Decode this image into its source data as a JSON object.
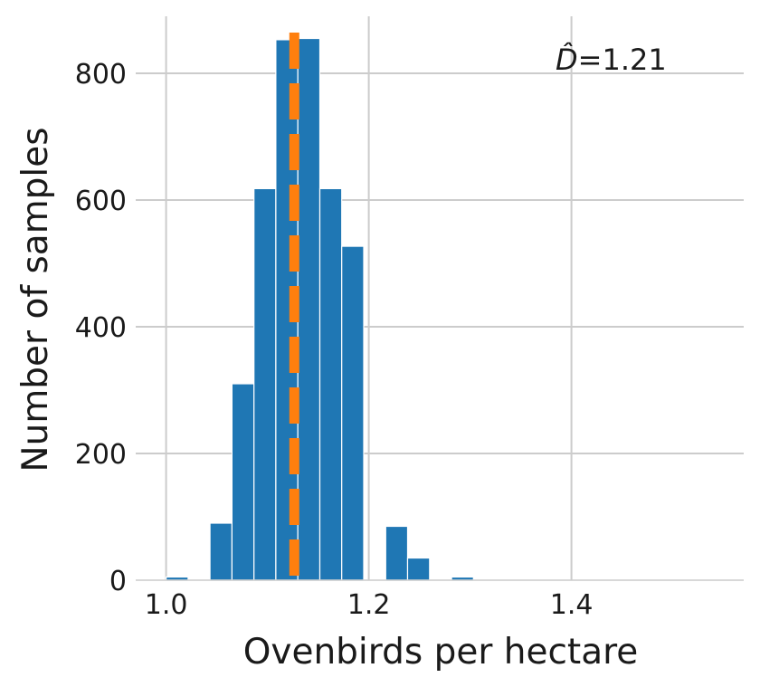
{
  "chart_data": {
    "type": "bar",
    "subtype": "histogram",
    "xlabel": "Ovenbirds per hectare",
    "ylabel": "Number of samples",
    "xlim": [
      0.97,
      1.57
    ],
    "ylim": [
      0,
      890
    ],
    "xticks": [
      1.0,
      1.2,
      1.4
    ],
    "xtick_labels": [
      "1.0",
      "1.2",
      "1.4"
    ],
    "yticks": [
      0,
      200,
      400,
      600,
      800
    ],
    "ytick_labels": [
      "0",
      "200",
      "400",
      "600",
      "800"
    ],
    "grid": true,
    "bins": [
      {
        "start": 1.0,
        "end": 1.0217,
        "count": 5
      },
      {
        "start": 1.0217,
        "end": 1.0433,
        "count": 0
      },
      {
        "start": 1.0433,
        "end": 1.065,
        "count": 90
      },
      {
        "start": 1.065,
        "end": 1.0867,
        "count": 310
      },
      {
        "start": 1.0867,
        "end": 1.1083,
        "count": 618
      },
      {
        "start": 1.1083,
        "end": 1.13,
        "count": 853
      },
      {
        "start": 1.13,
        "end": 1.1517,
        "count": 855
      },
      {
        "start": 1.1517,
        "end": 1.1733,
        "count": 618
      },
      {
        "start": 1.1733,
        "end": 1.195,
        "count": 527
      },
      {
        "start": 1.195,
        "end": 1.2167,
        "count": 0
      },
      {
        "start": 1.2167,
        "end": 1.2383,
        "count": 85
      },
      {
        "start": 1.2383,
        "end": 1.26,
        "count": 35
      },
      {
        "start": 1.26,
        "end": 1.2817,
        "count": 0
      },
      {
        "start": 1.2817,
        "end": 1.3033,
        "count": 5
      }
    ],
    "reference_line": {
      "x": 1.1265,
      "color": "#ff7f0e",
      "style": "dashed"
    },
    "annotation": {
      "symbol": "D̂",
      "text": "=1.21"
    },
    "bar_color": "#1f77b4"
  }
}
